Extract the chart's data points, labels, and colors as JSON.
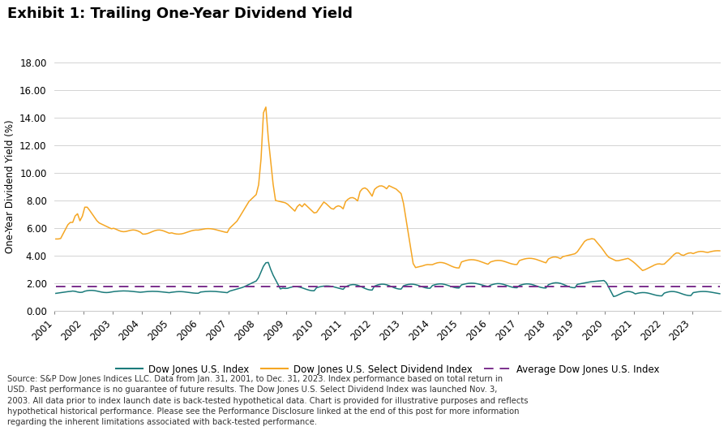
{
  "title": "Exhibit 1: Trailing One-Year Dividend Yield",
  "ylabel": "One-Year Dividend Yield (%)",
  "ylim": [
    0,
    18.0
  ],
  "yticks": [
    0.0,
    2.0,
    4.0,
    6.0,
    8.0,
    10.0,
    12.0,
    14.0,
    16.0,
    18.0
  ],
  "ytick_labels": [
    "0.00",
    "2.00",
    "4.00",
    "6.00",
    "8.00",
    "10.00",
    "12.00",
    "14.00",
    "16.00",
    "18.00"
  ],
  "xtick_years": [
    2001,
    2002,
    2003,
    2004,
    2005,
    2006,
    2007,
    2008,
    2009,
    2010,
    2011,
    2012,
    2013,
    2014,
    2015,
    2016,
    2017,
    2018,
    2019,
    2020,
    2021,
    2022,
    2023
  ],
  "dj_color": "#1b7b7b",
  "select_div_color": "#f5a623",
  "avg_color": "#7b2f8c",
  "avg_value": 1.78,
  "background_color": "#ffffff",
  "grid_color": "#cccccc",
  "title_fontsize": 13,
  "axis_label_fontsize": 8.5,
  "tick_fontsize": 8.5,
  "legend_fontsize": 8.5,
  "footnote_fontsize": 7.2,
  "footnote": "Source: S&P Dow Jones Indices LLC. Data from Jan. 31, 2001, to Dec. 31, 2023. Index performance based on total return in\nUSD. Past performance is no guarantee of future results. The Dow Jones U.S. Select Dividend Index was launched Nov. 3,\n2003. All data prior to index launch date is back-tested hypothetical data. Chart is provided for illustrative purposes and reflects\nhypothetical historical performance. Please see the Performance Disclosure linked at the end of this post for more information\nregarding the inherent limitations associated with back-tested performance.",
  "legend_labels": [
    "Dow Jones U.S. Index",
    "Dow Jones U.S. Select Dividend Index",
    "Average Dow Jones U.S. Index"
  ]
}
